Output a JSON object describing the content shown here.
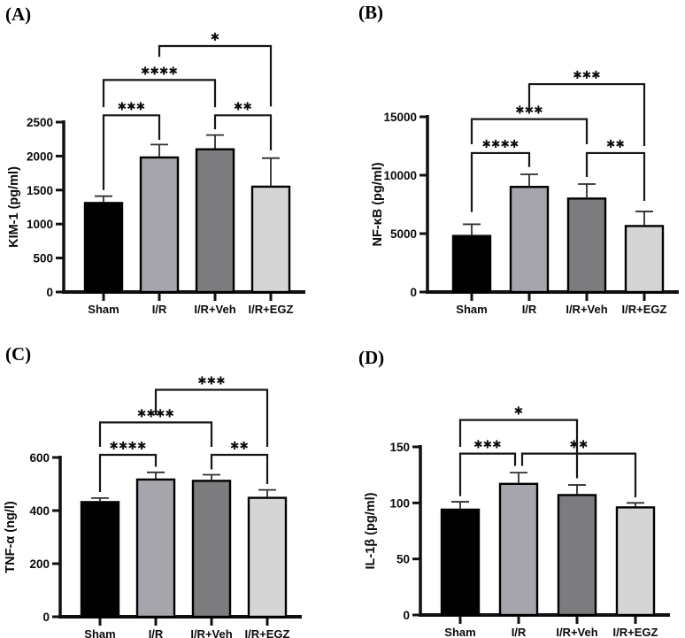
{
  "figure": {
    "panel_labels": [
      "(A)",
      "(B)",
      "(C)",
      "(D)"
    ],
    "bar_colors": [
      "#000000",
      "#a5a5ab",
      "#7c7c7f",
      "#d5d5d5"
    ],
    "axis_color": "#111111",
    "error_bar_color": "#2e2e2e",
    "background": "#ffffff"
  },
  "chart_data": [
    {
      "type": "bar",
      "panel": "(A)",
      "ylabel": "KIM-1 (pg/ml)",
      "xlabel": "",
      "ylim": [
        0,
        2500
      ],
      "yticks": [
        0,
        500,
        1000,
        1500,
        2000,
        2500
      ],
      "categories": [
        "Sham",
        "I/R",
        "I/R+Veh",
        "I/R+EGZ"
      ],
      "values": [
        1310,
        1980,
        2100,
        1550
      ],
      "errors": [
        100,
        190,
        210,
        420
      ],
      "grid": false,
      "legend": false,
      "significance": [
        {
          "a": 0,
          "b": 1,
          "stars": "***",
          "y": 2600,
          "e1": 1500,
          "e2": 2240
        },
        {
          "a": 2,
          "b": 3,
          "stars": "**",
          "y": 2600,
          "e1": 2395,
          "e2": 2085
        },
        {
          "a": 0,
          "b": 2,
          "stars": "****",
          "y": 3120,
          "e1": 2720,
          "e2": 2720
        },
        {
          "a": 1,
          "b": 3,
          "stars": "*",
          "y": 3620,
          "e1": 3460,
          "e2": 2730
        }
      ]
    },
    {
      "type": "bar",
      "panel": "(B)",
      "ylabel": "NF-κB (pg/ml)",
      "xlabel": "",
      "ylim": [
        0,
        15000
      ],
      "yticks": [
        0,
        5000,
        10000,
        15000
      ],
      "categories": [
        "Sham",
        "I/R",
        "I/R+Veh",
        "I/R+EGZ"
      ],
      "values": [
        4800,
        9000,
        8000,
        5650
      ],
      "errors": [
        1000,
        1075,
        1240,
        1250
      ],
      "grid": false,
      "legend": false,
      "significance": [
        {
          "a": 0,
          "b": 1,
          "stars": "****",
          "y": 11900,
          "e1": 6850,
          "e2": 10700
        },
        {
          "a": 2,
          "b": 3,
          "stars": "**",
          "y": 11900,
          "e1": 9850,
          "e2": 7800
        },
        {
          "a": 0,
          "b": 2,
          "stars": "***",
          "y": 14800,
          "e1": 12650,
          "e2": 12650
        },
        {
          "a": 1,
          "b": 3,
          "stars": "***",
          "y": 17800,
          "e1": 15500,
          "e2": 12500
        }
      ]
    },
    {
      "type": "bar",
      "panel": "(C)",
      "ylabel": "TNF-α (ng/l)",
      "xlabel": "",
      "ylim": [
        0,
        600
      ],
      "yticks": [
        0,
        200,
        400,
        600
      ],
      "categories": [
        "Sham",
        "I/R",
        "I/R+Veh",
        "I/R+EGZ"
      ],
      "values": [
        432,
        517,
        512,
        448
      ],
      "errors": [
        15,
        27,
        23,
        30
      ],
      "grid": false,
      "legend": false,
      "significance": [
        {
          "a": 0,
          "b": 1,
          "stars": "****",
          "y": 610,
          "e1": 470,
          "e2": 565
        },
        {
          "a": 2,
          "b": 3,
          "stars": "**",
          "y": 610,
          "e1": 555,
          "e2": 500
        },
        {
          "a": 0,
          "b": 2,
          "stars": "****",
          "y": 732,
          "e1": 640,
          "e2": 640
        },
        {
          "a": 1,
          "b": 3,
          "stars": "***",
          "y": 855,
          "e1": 760,
          "e2": 640
        }
      ]
    },
    {
      "type": "bar",
      "panel": "(D)",
      "ylabel": "IL-1β (pg/ml)",
      "xlabel": "",
      "ylim": [
        0,
        150
      ],
      "yticks": [
        0,
        50,
        100,
        150
      ],
      "categories": [
        "Sham",
        "I/R",
        "I/R+Veh",
        "I/R+EGZ"
      ],
      "values": [
        94,
        117,
        107,
        96
      ],
      "errors": [
        7,
        10,
        9,
        4
      ],
      "grid": false,
      "legend": false,
      "significance": [
        {
          "a": 0,
          "b": 1,
          "stars": "***",
          "y": 144,
          "e1": 106,
          "e2": 133,
          "dx2": -4
        },
        {
          "a": 1,
          "b": 3,
          "stars": "**",
          "y": 144,
          "e1": 133,
          "e2": 105,
          "dx1": 4
        },
        {
          "a": 0,
          "b": 2,
          "stars": "*",
          "y": 174,
          "e1": 150,
          "e2": 122
        }
      ]
    }
  ]
}
